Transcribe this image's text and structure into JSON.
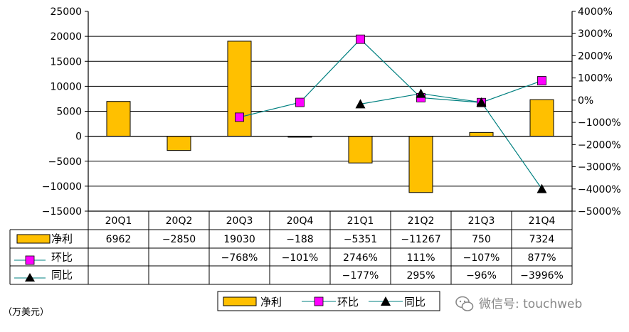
{
  "chart_data": {
    "type": "bar",
    "categories": [
      "20Q1",
      "20Q2",
      "20Q3",
      "20Q4",
      "21Q1",
      "21Q2",
      "21Q3",
      "21Q4"
    ],
    "series": [
      {
        "name": "净利",
        "kind": "bar",
        "axis": "left",
        "color": "#FFC000",
        "values": [
          6962,
          -2850,
          19030,
          -188,
          -5351,
          -11267,
          750,
          7324
        ],
        "labels": [
          "6962",
          "−2850",
          "19030",
          "−188",
          "−5351",
          "−11267",
          "750",
          "7324"
        ]
      },
      {
        "name": "环比",
        "kind": "line",
        "axis": "right",
        "marker": "square",
        "color": "#FF00FF",
        "values": [
          null,
          null,
          -768,
          -101,
          2746,
          111,
          -107,
          877
        ],
        "labels": [
          "",
          "",
          "−768%",
          "−101%",
          "2746%",
          "111%",
          "−107%",
          "877%"
        ]
      },
      {
        "name": "同比",
        "kind": "line",
        "axis": "right",
        "marker": "triangle",
        "color": "#000000",
        "values": [
          null,
          null,
          null,
          null,
          -177,
          295,
          -96,
          -3996
        ],
        "labels": [
          "",
          "",
          "",
          "",
          "−177%",
          "295%",
          "−96%",
          "−3996%"
        ]
      }
    ],
    "left_axis": {
      "min": -15000,
      "max": 25000,
      "ticks": [
        "25000",
        "20000",
        "15000",
        "10000",
        "5000",
        "0",
        "−5000",
        "−10000",
        "−15000"
      ]
    },
    "right_axis": {
      "min": -5000,
      "max": 4000,
      "ticks": [
        "4000%",
        "3000%",
        "2000%",
        "1000%",
        "0%",
        "−1000%",
        "−2000%",
        "−3000%",
        "−4000%",
        "−5000%"
      ]
    },
    "unit_label": "（万美元）",
    "legend": [
      "净利",
      "环比",
      "同比"
    ],
    "legend_position": "bottom",
    "line_color": "#008080",
    "grid": true
  },
  "watermark": "微信号: touchweb"
}
